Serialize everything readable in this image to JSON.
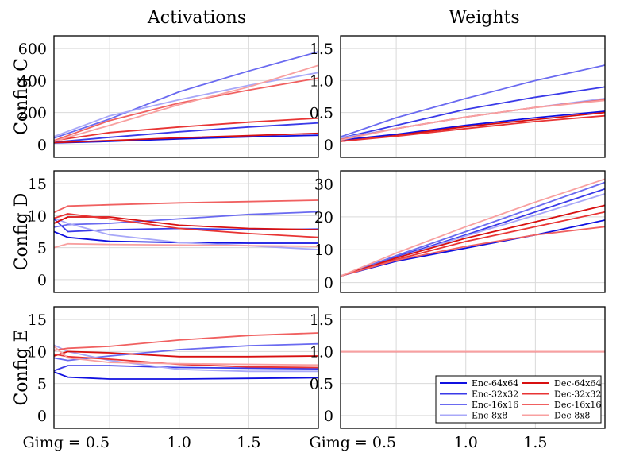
{
  "figure": {
    "column_titles": [
      "Activations",
      "Weights"
    ],
    "row_labels": [
      "Config C",
      "Config D",
      "Config E"
    ],
    "x_first_tick_label": "Gimg = 0.5",
    "x_other_tick_labels": [
      "1.0",
      "1.5"
    ]
  },
  "legend": [
    {
      "label": "Enc-64x64",
      "color": "#1010e0"
    },
    {
      "label": "Enc-32x32",
      "color": "#3a3ae8"
    },
    {
      "label": "Enc-16x16",
      "color": "#6a6af0"
    },
    {
      "label": "Enc-8x8",
      "color": "#a8a8f8"
    },
    {
      "label": "Dec-64x64",
      "color": "#d81010"
    },
    {
      "label": "Dec-32x32",
      "color": "#e83434"
    },
    {
      "label": "Dec-16x16",
      "color": "#f06060"
    },
    {
      "label": "Dec-8x8",
      "color": "#f8a0a0"
    }
  ],
  "chart_data": [
    {
      "type": "line",
      "row": 0,
      "col": 0,
      "title": "Activations",
      "ylabel": "Config C",
      "xlabel": "",
      "xlim": [
        0.1,
        2.0
      ],
      "ylim": [
        -80,
        680
      ],
      "xticks": [
        0.5,
        1.0,
        1.5
      ],
      "yticks": [
        0,
        200,
        400,
        600
      ],
      "ytick_labels": [
        "0",
        "200",
        "400",
        "600"
      ],
      "x": [
        0.1,
        0.5,
        1.0,
        1.5,
        2.0
      ],
      "series": [
        {
          "name": "Enc-64x64",
          "values": [
            10,
            20,
            35,
            48,
            58
          ]
        },
        {
          "name": "Enc-32x32",
          "values": [
            15,
            45,
            80,
            110,
            135
          ]
        },
        {
          "name": "Enc-16x16",
          "values": [
            40,
            160,
            330,
            460,
            580
          ]
        },
        {
          "name": "Enc-8x8",
          "values": [
            50,
            180,
            280,
            370,
            450
          ]
        },
        {
          "name": "Dec-64x64",
          "values": [
            12,
            25,
            42,
            56,
            70
          ]
        },
        {
          "name": "Dec-32x32",
          "values": [
            25,
            75,
            110,
            140,
            165
          ]
        },
        {
          "name": "Dec-16x16",
          "values": [
            25,
            150,
            260,
            340,
            415
          ]
        },
        {
          "name": "Dec-8x8",
          "values": [
            20,
            120,
            250,
            360,
            495
          ]
        }
      ]
    },
    {
      "type": "line",
      "row": 0,
      "col": 1,
      "title": "Weights",
      "ylabel": "",
      "xlabel": "",
      "xlim": [
        0.1,
        2.0
      ],
      "ylim": [
        -0.2,
        1.7
      ],
      "xticks": [
        0.5,
        1.0,
        1.5
      ],
      "yticks": [
        0,
        0.5,
        1.0,
        1.5
      ],
      "ytick_labels": [
        "0",
        "0.5",
        "1.0",
        "1.5"
      ],
      "x": [
        0.1,
        0.5,
        1.0,
        1.5,
        2.0
      ],
      "series": [
        {
          "name": "Enc-64x64",
          "values": [
            0.07,
            0.16,
            0.3,
            0.42,
            0.52
          ]
        },
        {
          "name": "Enc-32x32",
          "values": [
            0.1,
            0.3,
            0.55,
            0.74,
            0.9
          ]
        },
        {
          "name": "Enc-16x16",
          "values": [
            0.12,
            0.42,
            0.72,
            1.0,
            1.24
          ]
        },
        {
          "name": "Enc-8x8",
          "values": [
            0.1,
            0.25,
            0.43,
            0.58,
            0.72
          ]
        },
        {
          "name": "Dec-64x64",
          "values": [
            0.05,
            0.14,
            0.28,
            0.39,
            0.5
          ]
        },
        {
          "name": "Dec-32x32",
          "values": [
            0.05,
            0.13,
            0.25,
            0.36,
            0.45
          ]
        },
        {
          "name": "Dec-16x16",
          "values": [
            0.08,
            0.25,
            0.43,
            0.58,
            0.7
          ]
        },
        {
          "name": "Dec-8x8",
          "values": [
            0.07,
            0.25,
            0.43,
            0.58,
            0.69
          ]
        }
      ]
    },
    {
      "type": "line",
      "row": 1,
      "col": 0,
      "title": "",
      "ylabel": "Config D",
      "xlabel": "",
      "xlim": [
        0.1,
        2.0
      ],
      "ylim": [
        -2,
        17
      ],
      "xticks": [
        0.5,
        1.0,
        1.5
      ],
      "yticks": [
        0,
        5,
        10,
        15
      ],
      "ytick_labels": [
        "0",
        "5",
        "10",
        "15"
      ],
      "x": [
        0.1,
        0.2,
        0.5,
        1.0,
        1.5,
        2.0
      ],
      "series": [
        {
          "name": "Enc-64x64",
          "values": [
            7.5,
            6.6,
            6.0,
            5.8,
            5.7,
            5.7
          ]
        },
        {
          "name": "Enc-32x32",
          "values": [
            9.5,
            7.5,
            7.8,
            8.0,
            7.8,
            7.9
          ]
        },
        {
          "name": "Enc-16x16",
          "values": [
            8.2,
            8.6,
            8.8,
            9.5,
            10.2,
            10.6
          ]
        },
        {
          "name": "Enc-8x8",
          "values": [
            9.6,
            8.8,
            7.0,
            5.8,
            5.3,
            4.7
          ]
        },
        {
          "name": "Dec-64x64",
          "values": [
            8.8,
            9.8,
            9.8,
            8.5,
            8.0,
            7.8
          ]
        },
        {
          "name": "Dec-32x32",
          "values": [
            9.6,
            10.3,
            9.5,
            8.0,
            7.2,
            6.6
          ]
        },
        {
          "name": "Dec-16x16",
          "values": [
            10.5,
            11.5,
            11.7,
            12.0,
            12.2,
            12.4
          ]
        },
        {
          "name": "Dec-8x8",
          "values": [
            5.0,
            5.6,
            5.5,
            5.4,
            5.3,
            5.2
          ]
        }
      ]
    },
    {
      "type": "line",
      "row": 1,
      "col": 1,
      "title": "",
      "ylabel": "",
      "xlabel": "",
      "xlim": [
        0.1,
        2.0
      ],
      "ylim": [
        -3,
        34
      ],
      "xticks": [
        0.5,
        1.0,
        1.5
      ],
      "yticks": [
        0,
        10,
        20,
        30
      ],
      "ytick_labels": [
        "0",
        "10",
        "20",
        "30"
      ],
      "x": [
        0.1,
        0.5,
        1.0,
        1.5,
        2.0
      ],
      "series": [
        {
          "name": "Enc-64x64",
          "values": [
            2,
            6.5,
            10.5,
            14.5,
            19
          ]
        },
        {
          "name": "Enc-32x32",
          "values": [
            2,
            7.8,
            14.5,
            21.5,
            28.5
          ]
        },
        {
          "name": "Enc-16x16",
          "values": [
            2,
            8.2,
            15.5,
            23,
            30.5
          ]
        },
        {
          "name": "Enc-8x8",
          "values": [
            2,
            7.5,
            14.2,
            20.5,
            27
          ]
        },
        {
          "name": "Dec-64x64",
          "values": [
            2,
            7.5,
            13.5,
            18.5,
            23.5
          ]
        },
        {
          "name": "Dec-32x32",
          "values": [
            2,
            7.0,
            12.5,
            17.0,
            21.5
          ]
        },
        {
          "name": "Dec-16x16",
          "values": [
            2,
            6.8,
            11.0,
            14.5,
            17.0
          ]
        },
        {
          "name": "Dec-8x8",
          "values": [
            2,
            9.0,
            17.0,
            24.5,
            31.5
          ]
        }
      ]
    },
    {
      "type": "line",
      "row": 2,
      "col": 0,
      "title": "",
      "ylabel": "Config E",
      "xlabel": "",
      "xlim": [
        0.1,
        2.0
      ],
      "ylim": [
        -2,
        17
      ],
      "xticks": [
        0.5,
        1.0,
        1.5
      ],
      "yticks": [
        0,
        5,
        10,
        15
      ],
      "ytick_labels": [
        "0",
        "5",
        "10",
        "15"
      ],
      "x": [
        0.1,
        0.2,
        0.5,
        1.0,
        1.5,
        2.0
      ],
      "series": [
        {
          "name": "Enc-64x64",
          "values": [
            6.8,
            6.0,
            5.7,
            5.7,
            5.8,
            5.9
          ]
        },
        {
          "name": "Enc-32x32",
          "values": [
            7.0,
            7.8,
            7.8,
            7.5,
            7.4,
            7.3
          ]
        },
        {
          "name": "Enc-16x16",
          "values": [
            9.0,
            8.6,
            9.3,
            10.3,
            10.9,
            11.2
          ]
        },
        {
          "name": "Enc-8x8",
          "values": [
            11.0,
            10.0,
            8.6,
            7.2,
            6.9,
            6.9
          ]
        },
        {
          "name": "Dec-64x64",
          "values": [
            9.3,
            10.0,
            9.8,
            9.2,
            9.2,
            9.3
          ]
        },
        {
          "name": "Dec-32x32",
          "values": [
            9.6,
            9.2,
            8.8,
            8.0,
            7.6,
            7.5
          ]
        },
        {
          "name": "Dec-16x16",
          "values": [
            10.2,
            10.5,
            10.8,
            11.8,
            12.5,
            12.9
          ]
        },
        {
          "name": "Dec-8x8",
          "values": [
            10.8,
            9.0,
            8.3,
            8.1,
            8.0,
            7.9
          ]
        }
      ]
    },
    {
      "type": "line",
      "row": 2,
      "col": 1,
      "title": "",
      "ylabel": "",
      "xlabel": "",
      "xlim": [
        0.1,
        2.0
      ],
      "ylim": [
        -0.2,
        1.7
      ],
      "xticks": [
        0.5,
        1.0,
        1.5
      ],
      "yticks": [
        0,
        0.5,
        1.0,
        1.5
      ],
      "ytick_labels": [
        "0",
        "0.5",
        "1.0",
        "1.5"
      ],
      "x": [
        0.1,
        2.0
      ],
      "series": [
        {
          "name": "Enc-64x64",
          "values": [
            1.0,
            1.0
          ]
        },
        {
          "name": "Enc-32x32",
          "values": [
            1.0,
            1.0
          ]
        },
        {
          "name": "Enc-16x16",
          "values": [
            1.0,
            1.0
          ]
        },
        {
          "name": "Enc-8x8",
          "values": [
            1.0,
            1.0
          ]
        },
        {
          "name": "Dec-64x64",
          "values": [
            1.0,
            1.0
          ]
        },
        {
          "name": "Dec-32x32",
          "values": [
            1.0,
            1.0
          ]
        },
        {
          "name": "Dec-16x16",
          "values": [
            1.0,
            1.0
          ]
        },
        {
          "name": "Dec-8x8",
          "values": [
            1.0,
            1.0
          ]
        }
      ]
    }
  ]
}
